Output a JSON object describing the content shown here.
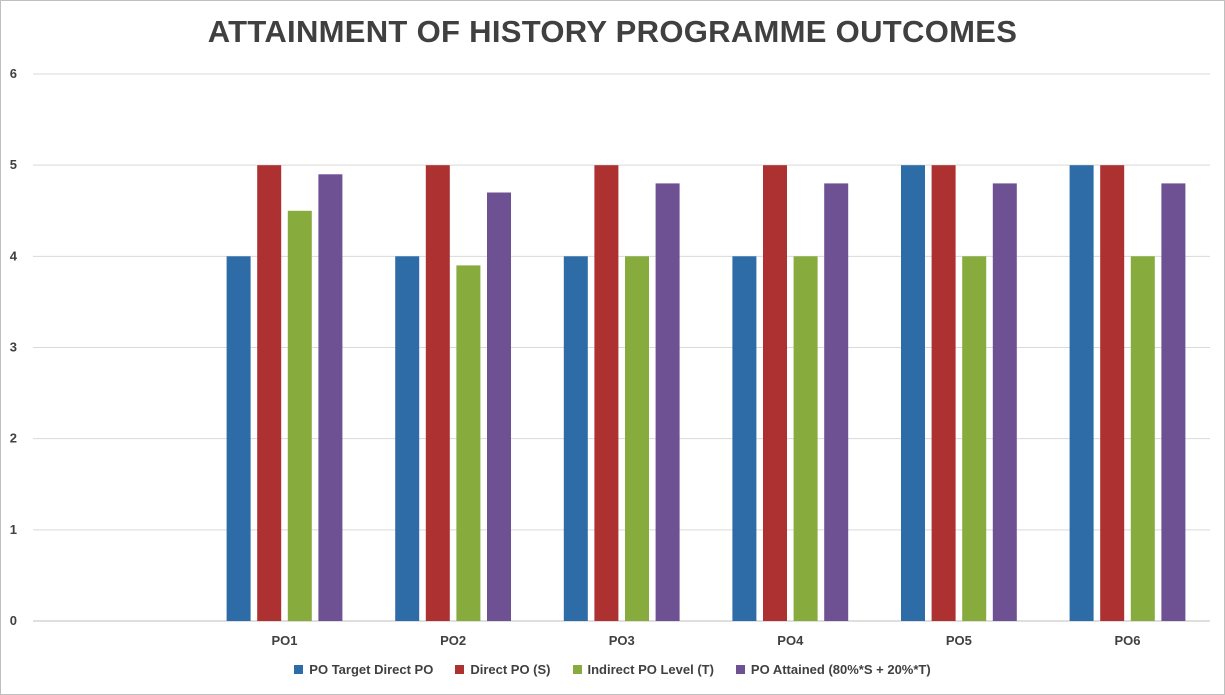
{
  "chart_data": {
    "type": "bar",
    "title": "ATTAINMENT  OF HISTORY PROGRAMME OUTCOMES",
    "categories": [
      "PO1",
      "PO2",
      "PO3",
      "PO4",
      "PO5",
      "PO6"
    ],
    "series": [
      {
        "name": "PO Target Direct PO",
        "color": "#2e6ca8",
        "values": [
          4,
          4,
          4,
          4,
          5,
          5
        ]
      },
      {
        "name": "Direct PO (S)",
        "color": "#ad3130",
        "values": [
          5,
          5,
          5,
          5,
          5,
          5
        ]
      },
      {
        "name": "Indirect PO Level (T)",
        "color": "#87ab3d",
        "values": [
          4.5,
          3.9,
          4,
          4,
          4,
          4
        ]
      },
      {
        "name": "PO Attained (80%*S + 20%*T)",
        "color": "#6d5193",
        "values": [
          4.9,
          4.7,
          4.8,
          4.8,
          4.8,
          4.8
        ]
      }
    ],
    "ylim": [
      0,
      6
    ],
    "yticks": [
      0,
      1,
      2,
      3,
      4,
      5,
      6
    ],
    "grid": true,
    "legend_position": "bottom"
  }
}
